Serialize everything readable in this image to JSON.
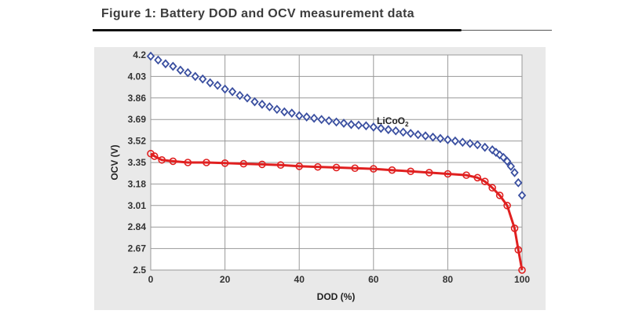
{
  "figure_title": "Figure 1: Battery DOD and OCV measurement data",
  "chart_data": {
    "type": "line",
    "title": "",
    "xlabel": "DOD (%)",
    "ylabel": "OCV (V)",
    "xlim": [
      0,
      100
    ],
    "ylim": [
      2.5,
      4.2
    ],
    "x_ticks": [
      "0",
      "20",
      "40",
      "60",
      "80",
      "100"
    ],
    "y_ticks": [
      "4.2",
      "4.03",
      "3.86",
      "3.69",
      "3.52",
      "3.35",
      "3.18",
      "3.01",
      "2.84",
      "2.67",
      "2.5"
    ],
    "grid": true,
    "annotation": {
      "text": "LiCoO",
      "subscript": "2"
    },
    "series": [
      {
        "color": "#3a4fa0",
        "marker": "diamond",
        "line": false,
        "x": [
          0,
          2,
          4,
          6,
          8,
          10,
          12,
          14,
          16,
          18,
          20,
          22,
          24,
          26,
          28,
          30,
          32,
          34,
          36,
          38,
          40,
          42,
          44,
          46,
          48,
          50,
          52,
          54,
          56,
          58,
          60,
          62,
          64,
          66,
          68,
          70,
          72,
          74,
          76,
          78,
          80,
          82,
          84,
          86,
          88,
          90,
          92,
          93,
          94,
          95,
          96,
          97,
          98,
          99,
          100
        ],
        "y": [
          4.19,
          4.16,
          4.13,
          4.11,
          4.08,
          4.06,
          4.03,
          4.01,
          3.98,
          3.96,
          3.93,
          3.91,
          3.88,
          3.86,
          3.83,
          3.81,
          3.79,
          3.77,
          3.75,
          3.74,
          3.72,
          3.71,
          3.7,
          3.69,
          3.68,
          3.67,
          3.66,
          3.65,
          3.645,
          3.64,
          3.63,
          3.62,
          3.61,
          3.6,
          3.59,
          3.58,
          3.57,
          3.56,
          3.55,
          3.54,
          3.53,
          3.52,
          3.51,
          3.5,
          3.49,
          3.47,
          3.45,
          3.43,
          3.41,
          3.39,
          3.36,
          3.32,
          3.27,
          3.19,
          3.09
        ]
      },
      {
        "color": "#e02020",
        "marker": "circle",
        "line": true,
        "x": [
          0,
          1,
          3,
          6,
          10,
          15,
          20,
          25,
          30,
          35,
          40,
          45,
          50,
          55,
          60,
          65,
          70,
          75,
          80,
          85,
          88,
          90,
          92,
          94,
          96,
          98,
          99,
          100
        ],
        "y": [
          3.42,
          3.4,
          3.37,
          3.36,
          3.35,
          3.35,
          3.345,
          3.34,
          3.335,
          3.33,
          3.32,
          3.315,
          3.31,
          3.305,
          3.3,
          3.29,
          3.28,
          3.27,
          3.26,
          3.25,
          3.23,
          3.2,
          3.15,
          3.09,
          3.01,
          2.83,
          2.66,
          2.5
        ]
      }
    ]
  }
}
